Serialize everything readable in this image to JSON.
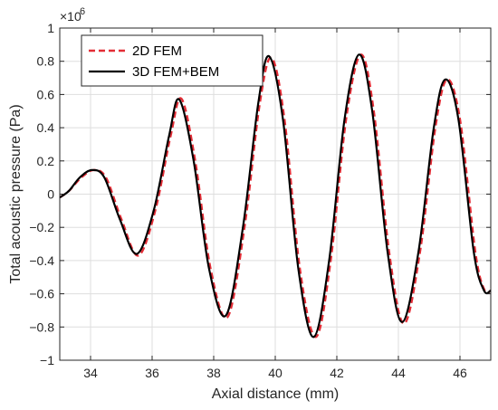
{
  "chart_data": {
    "type": "line",
    "xlabel": "Axial distance (mm)",
    "ylabel": "Total acoustic pressure (Pa)",
    "y_exponent_base": "×10",
    "y_exponent_power": "6",
    "xlim": [
      33,
      47
    ],
    "ylim": [
      -1,
      1
    ],
    "xticks": [
      34,
      36,
      38,
      40,
      42,
      44,
      46
    ],
    "yticks": [
      -1,
      -0.8,
      -0.6,
      -0.4,
      -0.2,
      0,
      0.2,
      0.4,
      0.6,
      0.8,
      1
    ],
    "grid": true,
    "legend_position": "top-left",
    "series": [
      {
        "name": "2D FEM",
        "color": "#e32d36",
        "style": "dashed",
        "x": [
          33.0,
          33.3,
          33.7,
          34.1,
          34.5,
          35.0,
          35.55,
          36.1,
          36.6,
          36.95,
          37.4,
          37.9,
          38.45,
          39.0,
          39.5,
          39.88,
          40.3,
          40.8,
          41.32,
          41.8,
          42.3,
          42.78,
          43.2,
          43.7,
          44.18,
          44.7,
          45.2,
          45.58,
          46.0,
          46.5,
          46.8,
          47.0
        ],
        "y": [
          -0.02,
          0.02,
          0.1,
          0.145,
          0.1,
          -0.15,
          -0.37,
          -0.1,
          0.35,
          0.575,
          0.2,
          -0.45,
          -0.74,
          -0.2,
          0.55,
          0.82,
          0.45,
          -0.45,
          -0.86,
          -0.4,
          0.45,
          0.84,
          0.5,
          -0.35,
          -0.78,
          -0.35,
          0.4,
          0.69,
          0.45,
          -0.35,
          -0.58,
          -0.58
        ]
      },
      {
        "name": "3D FEM+BEM",
        "color": "#000000",
        "style": "solid",
        "x": [
          33.0,
          33.3,
          33.65,
          34.05,
          34.45,
          34.95,
          35.5,
          36.05,
          36.55,
          36.88,
          37.35,
          37.85,
          38.4,
          38.95,
          39.45,
          39.8,
          40.25,
          40.75,
          41.25,
          41.75,
          42.25,
          42.72,
          43.15,
          43.65,
          44.12,
          44.65,
          45.15,
          45.52,
          45.95,
          46.45,
          46.78,
          47.0
        ],
        "y": [
          -0.02,
          0.02,
          0.1,
          0.145,
          0.1,
          -0.15,
          -0.36,
          -0.1,
          0.35,
          0.57,
          0.2,
          -0.45,
          -0.73,
          -0.2,
          0.55,
          0.83,
          0.45,
          -0.45,
          -0.86,
          -0.4,
          0.45,
          0.84,
          0.5,
          -0.35,
          -0.77,
          -0.35,
          0.4,
          0.69,
          0.45,
          -0.35,
          -0.58,
          -0.58
        ]
      }
    ]
  }
}
